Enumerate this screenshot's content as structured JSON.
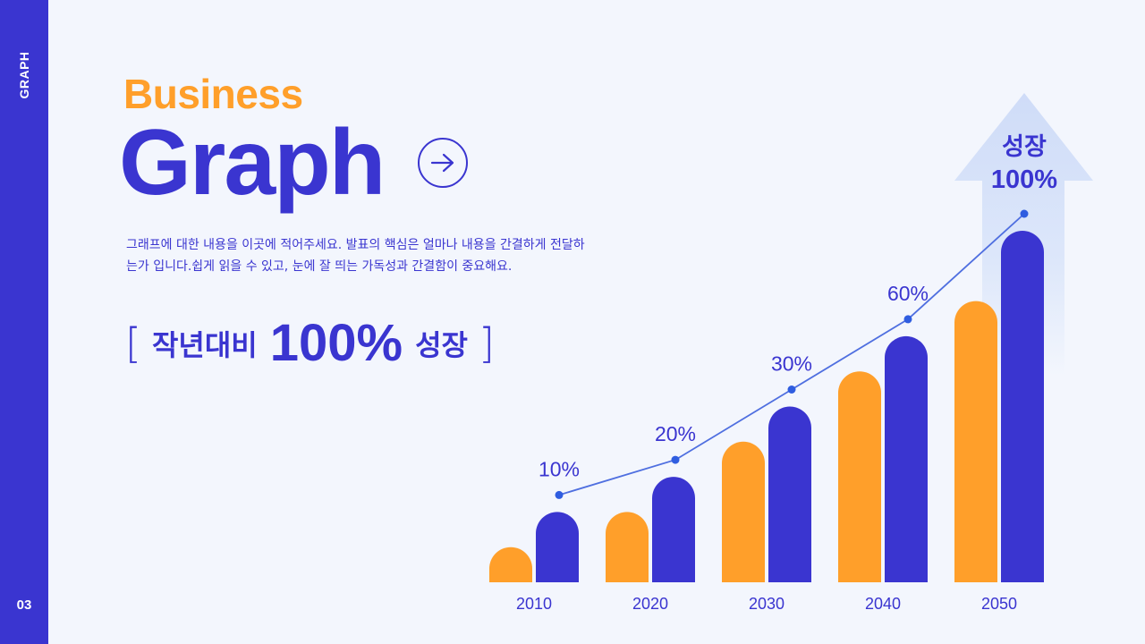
{
  "sidebar": {
    "label": "GRAPH",
    "page_number": "03"
  },
  "header": {
    "subtitle": "Business",
    "title": "Graph",
    "arrow_icon": "arrow-right-circle-icon"
  },
  "description": "그래프에 대한 내용을 이곳에 적어주세요. 발표의 핵심은 얼마나 내용을 간결하게 전달하는가 입니다.쉽게 읽을 수 있고, 눈에 잘 띄는 가독성과 간결함이 중요해요.",
  "highlight": {
    "open": "[",
    "prefix": "작년대비",
    "value": "100%",
    "suffix": "성장",
    "close": "]"
  },
  "colors": {
    "primary": "#3a35d0",
    "accent": "#ff9f2a",
    "background": "#f3f6fd",
    "arrow": "#cfdcf8"
  },
  "chart_data": {
    "type": "bar",
    "categories": [
      "2010",
      "2020",
      "2030",
      "2040",
      "2050"
    ],
    "series": [
      {
        "values": [
          1,
          2,
          4,
          6,
          8
        ],
        "color": "#ff9f2a"
      },
      {
        "values": [
          2,
          3,
          5,
          7,
          10
        ],
        "color": "#3a35d0"
      }
    ],
    "line": {
      "labels": [
        "10%",
        "20%",
        "30%",
        "60%",
        "100%"
      ],
      "values": [
        10,
        20,
        30,
        60,
        100
      ]
    },
    "callout": {
      "line1": "성장",
      "line2": "100%"
    },
    "grid": false,
    "legend": "none"
  }
}
